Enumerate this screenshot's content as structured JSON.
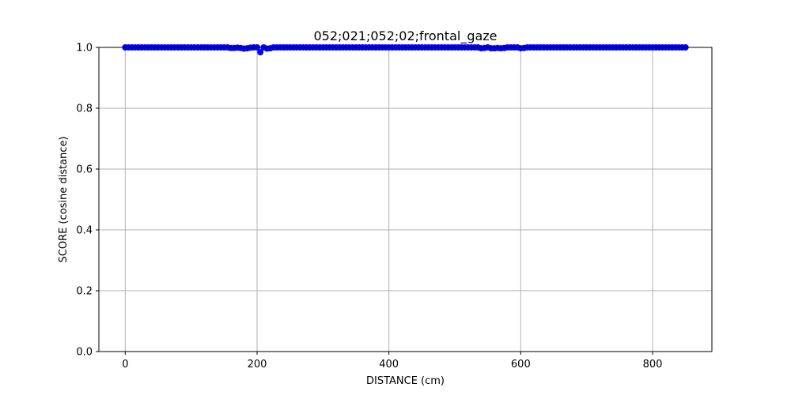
{
  "chart_data": {
    "type": "scatter",
    "title": "052;021;052;02;frontal_gaze",
    "xlabel": "DISTANCE (cm)",
    "ylabel": "SCORE (cosine distance)",
    "xlim": [
      -40,
      890
    ],
    "ylim": [
      0.0,
      1.0
    ],
    "xticks": [
      0,
      200,
      400,
      600,
      800
    ],
    "xtick_labels": [
      "0",
      "200",
      "400",
      "600",
      "800"
    ],
    "yticks": [
      0.0,
      0.2,
      0.4,
      0.6,
      0.8,
      1.0
    ],
    "ytick_labels": [
      "0.0",
      "0.2",
      "0.4",
      "0.6",
      "0.8",
      "1.0"
    ],
    "grid": true,
    "series": [
      {
        "name": "score",
        "color": "#0000ff",
        "marker": "circle",
        "x_start": 0,
        "x_end": 850,
        "x_step": 5,
        "default_y": 1.0,
        "dips": [
          {
            "x": 160,
            "y": 0.998
          },
          {
            "x": 165,
            "y": 0.998
          },
          {
            "x": 170,
            "y": 0.999
          },
          {
            "x": 175,
            "y": 0.998
          },
          {
            "x": 180,
            "y": 0.996
          },
          {
            "x": 185,
            "y": 0.997
          },
          {
            "x": 190,
            "y": 0.999
          },
          {
            "x": 205,
            "y": 0.984
          },
          {
            "x": 215,
            "y": 0.996
          },
          {
            "x": 220,
            "y": 0.997
          },
          {
            "x": 540,
            "y": 0.997
          },
          {
            "x": 545,
            "y": 0.998
          },
          {
            "x": 555,
            "y": 0.997
          },
          {
            "x": 560,
            "y": 0.997
          },
          {
            "x": 565,
            "y": 0.998
          },
          {
            "x": 570,
            "y": 0.997
          },
          {
            "x": 575,
            "y": 0.998
          },
          {
            "x": 600,
            "y": 0.997
          },
          {
            "x": 605,
            "y": 0.998
          }
        ]
      }
    ]
  }
}
